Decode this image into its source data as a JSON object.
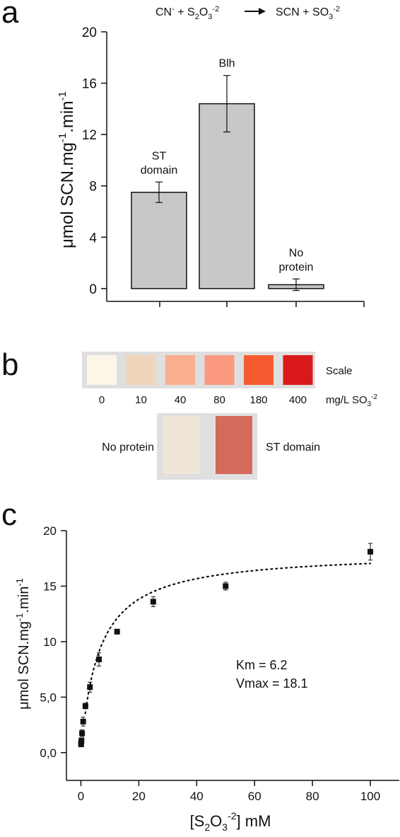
{
  "panels": {
    "a": "a",
    "b": "b",
    "c": "c"
  },
  "panel_a": {
    "reaction": {
      "left": "CN",
      "left_sup": "-",
      "plus1": "+ S",
      "sub_2": "2",
      "O": "O",
      "sub_3": "3",
      "charge": "-2",
      "right": "SCN + SO",
      "sub_3b": "3",
      "charge_b": "-2"
    },
    "ylabel_main": "μmol SCN.mg",
    "ylabel_sup": "-1",
    "ylabel_tail": ".min",
    "ylabel_sup2": "-1"
  },
  "panel_b": {
    "scale_label": "Scale",
    "unit_label": "mg/L SO",
    "unit_sub": "3",
    "unit_sup": "-2",
    "swatches": [
      {
        "value": "0",
        "color": "#fbf6e8"
      },
      {
        "value": "10",
        "color": "#f0d5bd"
      },
      {
        "value": "40",
        "color": "#f9ae8e"
      },
      {
        "value": "80",
        "color": "#fb9a80"
      },
      {
        "value": "180",
        "color": "#f65b2f"
      },
      {
        "value": "400",
        "color": "#d9191a"
      }
    ],
    "tests": [
      {
        "label": "No protein",
        "color": "#f0e5d9"
      },
      {
        "label": "ST domain",
        "color": "#d46a5c"
      }
    ],
    "strip_bg": "#dfdfdf"
  },
  "panel_c": {
    "ylabel_main": "μmol SCN.mg",
    "ylabel_sup": "-1",
    "ylabel_tail": ".min",
    "ylabel_sup2": "-1",
    "xlabel_pre": "[S",
    "xlabel_sub2": "2",
    "xlabel_O": "O",
    "xlabel_sub3": "3",
    "xlabel_sup": "-2",
    "xlabel_post": "] mM",
    "km_text": "Km = 6.2",
    "vmax_text": "Vmax = 18.1"
  },
  "chart_data": [
    {
      "type": "bar",
      "categories": [
        "ST domain",
        "Blh",
        "No protein"
      ],
      "category_labels": [
        [
          "ST",
          "domain"
        ],
        [
          "Blh"
        ],
        [
          "No",
          "protein"
        ]
      ],
      "values": [
        7.5,
        14.4,
        0.3
      ],
      "errors": [
        0.8,
        2.2,
        0.45
      ],
      "ylim": [
        -1,
        20
      ],
      "yticks": [
        "0",
        "4",
        "8",
        "12",
        "16",
        "20"
      ],
      "ytick_values": [
        0,
        4,
        8,
        12,
        16,
        20
      ],
      "bar_color": "#c8c8c8"
    },
    {
      "type": "scatter",
      "x": [
        0.05,
        0.1,
        0.2,
        0.4,
        0.78,
        1.56,
        3.12,
        6.25,
        12.5,
        25,
        50,
        100
      ],
      "y": [
        0.75,
        0.9,
        1.1,
        1.75,
        2.8,
        4.2,
        5.9,
        8.4,
        10.9,
        13.6,
        15.0,
        18.1
      ],
      "errors": [
        0.15,
        0.2,
        0.2,
        0.3,
        0.4,
        0.25,
        0.45,
        0.6,
        0.15,
        0.45,
        0.35,
        0.75
      ],
      "xlim": [
        -5,
        110
      ],
      "ylim": [
        -2.5,
        20
      ],
      "xticks": [
        "0",
        "20",
        "40",
        "60",
        "80",
        "100"
      ],
      "xtick_values": [
        0,
        20,
        40,
        60,
        80,
        100
      ],
      "yticks": [
        "0,0",
        "5,0",
        "10",
        "15",
        "20"
      ],
      "ytick_values": [
        0,
        5,
        10,
        15,
        20
      ],
      "fit": {
        "model": "michaelis-menten",
        "Km": 6.2,
        "Vmax": 18.1
      }
    }
  ]
}
